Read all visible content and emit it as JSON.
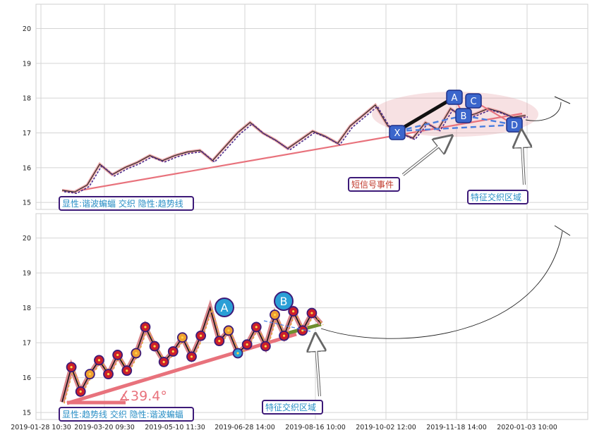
{
  "chart_data": [
    {
      "type": "line",
      "panel": "top",
      "ylim": [
        14.8,
        20.7
      ],
      "y_ticks": [
        "15",
        "16",
        "17",
        "18",
        "19",
        "20"
      ],
      "grid": true,
      "series": [
        {
          "values": [
            15.35,
            15.3,
            15.5,
            16.1,
            15.8,
            16.0,
            16.15,
            16.35,
            16.2,
            16.35,
            16.45,
            16.5,
            16.2,
            16.6,
            17.0,
            17.3,
            17.0,
            16.8,
            16.55,
            16.8,
            17.05,
            16.9,
            16.7,
            17.2,
            17.5,
            17.8,
            17.2,
            17.0,
            16.85,
            17.3,
            17.1,
            17.7,
            17.45,
            17.55,
            17.7,
            17.6,
            17.45,
            17.5
          ]
        }
      ],
      "pattern_points": [
        {
          "label": "X",
          "y": 16.95
        },
        {
          "label": "A",
          "y": 17.95
        },
        {
          "label": "B",
          "y": 17.45
        },
        {
          "label": "C",
          "y": 17.9
        },
        {
          "label": "D",
          "y": 17.2
        }
      ],
      "annotations": {
        "legend_text": "显性:谐波蝙蝠 交织 隐性:趋势线",
        "short_signal": "短信号事件",
        "zone": "特征交织区域"
      }
    },
    {
      "type": "line",
      "panel": "bottom",
      "ylim": [
        14.8,
        20.7
      ],
      "y_ticks": [
        "15",
        "16",
        "17",
        "18",
        "19",
        "20"
      ],
      "x_ticks": [
        "2019-01-28 10:30",
        "2019-03-20 09:30",
        "2019-05-10 11:30",
        "2019-06-28 14:00",
        "2019-08-16 10:00",
        "2019-10-02 12:00",
        "2019-11-18 14:00",
        "2020-01-03 10:00"
      ],
      "grid": true,
      "series": [
        {
          "values": [
            15.3,
            16.3,
            15.6,
            16.1,
            16.5,
            16.1,
            16.65,
            16.2,
            16.7,
            17.45,
            16.9,
            16.45,
            16.75,
            17.15,
            16.6,
            17.2,
            18.0,
            17.05,
            17.35,
            16.7,
            16.95,
            17.45,
            16.9,
            17.8,
            17.2,
            17.9,
            17.35,
            17.85,
            17.55
          ]
        }
      ],
      "pattern_points": [
        {
          "label": "A",
          "y": 18.05
        },
        {
          "label": "B",
          "y": 18.2
        }
      ],
      "trend_angle": "∡39.4°",
      "annotations": {
        "legend_text": "显性:趋势线 交织 隐性:谐波蝙蝠",
        "zone": "特征交织区域"
      }
    }
  ]
}
